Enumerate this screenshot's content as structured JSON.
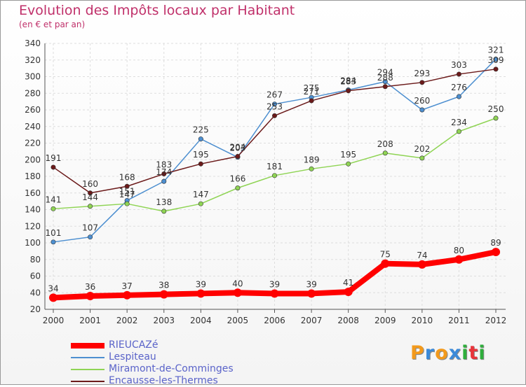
{
  "title": "Evolution des Impôts locaux par Habitant",
  "subtitle": "(en € et par an)",
  "logo": {
    "text": "Proxiti",
    "letter_colors": [
      "#f39a1c",
      "#3b8ad9",
      "#f39a1c",
      "#3b8ad9",
      "#2fae3c",
      "#e8343a",
      "#2fae3c"
    ]
  },
  "chart_data": {
    "type": "line",
    "title": "Evolution des Impôts locaux par Habitant",
    "subtitle": "(en € et par an)",
    "xlabel": "",
    "ylabel": "",
    "ylim": [
      20,
      340
    ],
    "yticks": [
      20,
      40,
      60,
      80,
      100,
      120,
      140,
      160,
      180,
      200,
      220,
      240,
      260,
      280,
      300,
      320,
      340
    ],
    "grid": true,
    "legend_position": "bottom-left",
    "x": [
      "2000",
      "2001",
      "2002",
      "2003",
      "2004",
      "2005",
      "2006",
      "2007",
      "2008",
      "2009",
      "2010",
      "2011",
      "2012"
    ],
    "series": [
      {
        "name": "RIEUCAZé",
        "color": "#ff0000",
        "values": [
          34,
          36,
          37,
          38,
          39,
          40,
          39,
          39,
          41,
          75,
          74,
          80,
          89
        ]
      },
      {
        "name": "Lespiteau",
        "color": "#4d8fd0",
        "values": [
          101,
          107,
          151,
          174,
          225,
          203,
          267,
          275,
          284,
          294,
          260,
          276,
          321
        ]
      },
      {
        "name": "Miramont-de-Comminges",
        "color": "#8fd454",
        "values": [
          141,
          144,
          147,
          138,
          147,
          166,
          181,
          189,
          195,
          208,
          202,
          234,
          250
        ]
      },
      {
        "name": "Encausse-les-Thermes",
        "color": "#6b1a1a",
        "values": [
          191,
          160,
          168,
          183,
          195,
          204,
          253,
          271,
          283,
          288,
          293,
          303,
          309
        ]
      }
    ],
    "data_labels": [
      [
        "34",
        "36",
        "37",
        "38",
        "39",
        "40",
        "39",
        "39",
        "41",
        "75",
        "74",
        "80",
        "89"
      ],
      [
        "101",
        "107",
        "151",
        "174",
        "225",
        "203",
        "267",
        "275",
        "284",
        "294",
        "260",
        "276",
        "321"
      ],
      [
        "141",
        "144",
        "147",
        "138",
        "147",
        "166",
        "181",
        "189",
        "195",
        "208",
        "202",
        "234",
        "250"
      ],
      [
        "191",
        "160",
        "168",
        "183",
        "195",
        "204",
        "253",
        "271",
        "283",
        "288",
        "293",
        "303",
        "309"
      ]
    ]
  }
}
